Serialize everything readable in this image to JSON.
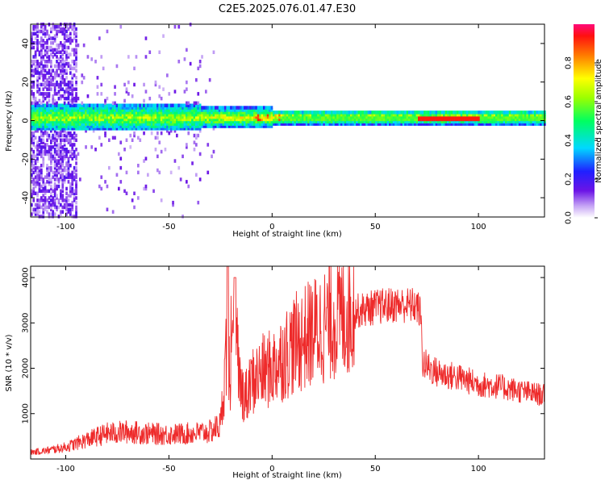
{
  "title": "C2E5.2025.076.01.47.E30",
  "chart_data": [
    {
      "type": "heatmap",
      "xlabel": "Height of straight line (km)",
      "ylabel": "Frequency (Hz)",
      "xlim": [
        -117,
        132
      ],
      "ylim": [
        -50,
        50
      ],
      "x_ticks": [
        -100,
        -50,
        0,
        50,
        100
      ],
      "y_ticks": [
        -40,
        -20,
        0,
        20,
        40
      ],
      "colorbar": {
        "label": "Normalized spectral amplitude",
        "range": [
          0,
          1
        ],
        "ticks": [
          "0.0",
          "0.2",
          "0.4",
          "0.6",
          "0.8"
        ],
        "colormap": "rainbow"
      },
      "ridge": {
        "frequency_hz": 1.5,
        "note_segments": [
          {
            "x_from": -117,
            "x_to": -35,
            "scatter": "broad"
          },
          {
            "x_from": -35,
            "x_to": 0,
            "scatter": "moderate"
          },
          {
            "x_from": 0,
            "x_to": 132,
            "scatter": "narrow"
          }
        ]
      }
    },
    {
      "type": "line",
      "xlabel": "Height of straight line (km)",
      "ylabel": "SNR (10 * v/v)",
      "xlim": [
        -117,
        132
      ],
      "ylim": [
        0,
        4250
      ],
      "x_ticks": [
        -100,
        -50,
        0,
        50,
        100
      ],
      "y_ticks": [
        1000,
        2000,
        3000,
        4000
      ],
      "color": "#ee2b2b",
      "series": [
        {
          "x": [
            -117,
            -110,
            -100,
            -90,
            -80,
            -70,
            -60,
            -50,
            -40,
            -30,
            -25,
            -22,
            -20,
            -18,
            -15,
            -12,
            -10,
            -5,
            0,
            5,
            10,
            20,
            30,
            40,
            50,
            60,
            70,
            72,
            73,
            80,
            90,
            100,
            110,
            120,
            132
          ],
          "values": [
            150,
            180,
            260,
            420,
            560,
            600,
            560,
            540,
            560,
            600,
            750,
            2400,
            1800,
            2600,
            1500,
            1400,
            1700,
            1900,
            2000,
            2250,
            2500,
            2800,
            3100,
            3250,
            3350,
            3400,
            3380,
            3200,
            2100,
            1900,
            1800,
            1650,
            1600,
            1500,
            1400
          ]
        }
      ]
    }
  ]
}
